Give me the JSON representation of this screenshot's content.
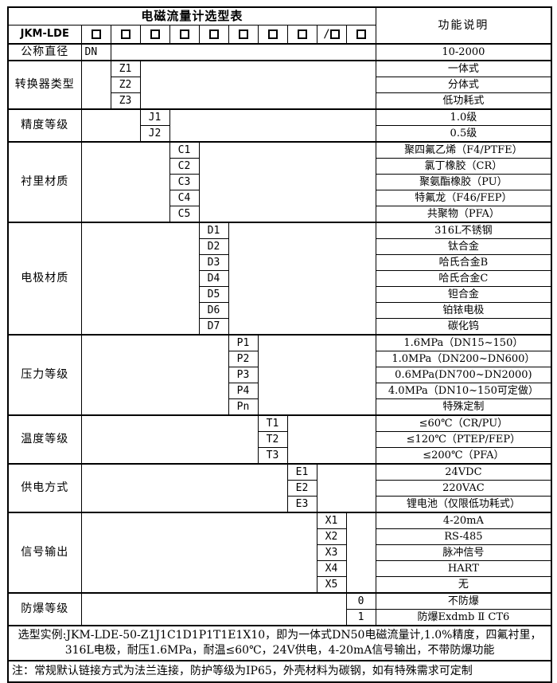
{
  "colors": {
    "border": "#000000",
    "background": "#ffffff",
    "text": "#000000"
  },
  "title": "电磁流量计选型表",
  "function_header": "功能说明",
  "model_row": {
    "label": "JKM-LDE",
    "prefixes": [
      "",
      "",
      "",
      "",
      "",
      "",
      "",
      "",
      "/",
      ""
    ]
  },
  "groups": [
    {
      "label": "公称直径",
      "column": 1,
      "rows": [
        {
          "code": "DN",
          "desc": "10-2000"
        }
      ]
    },
    {
      "label": "转换器类型",
      "column": 2,
      "rows": [
        {
          "code": "Z1",
          "desc": "一体式"
        },
        {
          "code": "Z2",
          "desc": "分体式"
        },
        {
          "code": "Z3",
          "desc": "低功耗式"
        }
      ]
    },
    {
      "label": "精度等级",
      "column": 3,
      "rows": [
        {
          "code": "J1",
          "desc": "1.0级"
        },
        {
          "code": "J2",
          "desc": "0.5级"
        }
      ]
    },
    {
      "label": "衬里材质",
      "column": 4,
      "rows": [
        {
          "code": "C1",
          "desc": "聚四氟乙烯（F4/PTFE）"
        },
        {
          "code": "C2",
          "desc": "氯丁橡胶（CR）"
        },
        {
          "code": "C3",
          "desc": "聚氨酯橡胶（PU）"
        },
        {
          "code": "C4",
          "desc": "特氟龙（F46/FEP）"
        },
        {
          "code": "C5",
          "desc": "共聚物（PFA）"
        }
      ]
    },
    {
      "label": "电极材质",
      "column": 5,
      "rows": [
        {
          "code": "D1",
          "desc": "316L不锈钢"
        },
        {
          "code": "D2",
          "desc": "钛合金"
        },
        {
          "code": "D3",
          "desc": "哈氏合金B"
        },
        {
          "code": "D4",
          "desc": "哈氏合金C"
        },
        {
          "code": "D5",
          "desc": "钽合金"
        },
        {
          "code": "D6",
          "desc": "铂铱电极"
        },
        {
          "code": "D7",
          "desc": "碳化钨"
        }
      ]
    },
    {
      "label": "压力等级",
      "column": 6,
      "rows": [
        {
          "code": "P1",
          "desc": "1.6MPa（DN15~150）"
        },
        {
          "code": "P2",
          "desc": "1.0MPa（DN200~DN600）"
        },
        {
          "code": "P3",
          "desc": "0.6MPa(DN700~DN2000)"
        },
        {
          "code": "P4",
          "desc": "4.0MPa（DN10~150可定做）"
        },
        {
          "code": "Pn",
          "desc": "特殊定制"
        }
      ]
    },
    {
      "label": "温度等级",
      "column": 7,
      "rows": [
        {
          "code": "T1",
          "desc": "≤60℃（CR/PU）"
        },
        {
          "code": "T2",
          "desc": "≤120℃（PTEP/FEP）"
        },
        {
          "code": "T3",
          "desc": "≤200℃（PFA）"
        }
      ]
    },
    {
      "label": "供电方式",
      "column": 8,
      "rows": [
        {
          "code": "E1",
          "desc": "24VDC"
        },
        {
          "code": "E2",
          "desc": "220VAC"
        },
        {
          "code": "E3",
          "desc": "锂电池（仅限低功耗式）"
        }
      ]
    },
    {
      "label": "信号输出",
      "column": 9,
      "rows": [
        {
          "code": "X1",
          "desc": "4-20mA"
        },
        {
          "code": "X2",
          "desc": "RS-485"
        },
        {
          "code": "X3",
          "desc": "脉冲信号"
        },
        {
          "code": "X4",
          "desc": "HART"
        },
        {
          "code": "X5",
          "desc": "无"
        }
      ]
    },
    {
      "label": "防爆等级",
      "column": 10,
      "rows": [
        {
          "code": "0",
          "desc": "不防爆"
        },
        {
          "code": "1",
          "desc": "防爆Exdmb Ⅱ CT6"
        }
      ]
    }
  ],
  "example": "选型实例:JKM-LDE-50-Z1J1C1D1P1T1E1X10，即为一体式DN50电磁流量计,1.0%精度，四氟衬里，316L电极，耐压1.6MPa，耐温≤60℃，24V供电，4-20mA信号输出，不带防爆功能",
  "note": "注：常规默认链接方式为法兰连接，防护等级为IP65，外壳材料为碳钢，如有特殊需求可定制"
}
